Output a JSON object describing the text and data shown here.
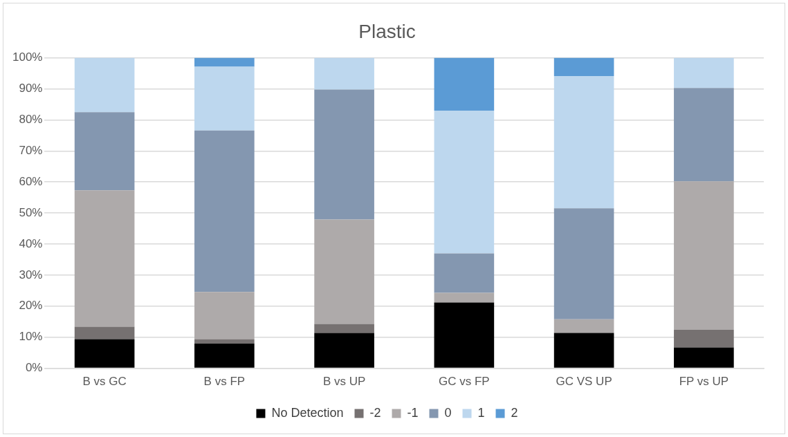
{
  "chart_data": {
    "type": "bar",
    "title": "Plastic",
    "stacked": true,
    "categories": [
      "B vs GC",
      "B vs FP",
      "B vs UP",
      "GC vs FP",
      "GC VS UP",
      "FP vs UP"
    ],
    "series": [
      {
        "name": "No Detection",
        "color": "#000000",
        "values": [
          9.4,
          8.0,
          11.4,
          21.2,
          11.4,
          6.7
        ]
      },
      {
        "name": "-2",
        "color": "#767171",
        "values": [
          4.0,
          1.4,
          2.9,
          0,
          0,
          5.7
        ]
      },
      {
        "name": "-1",
        "color": "#aeaaaa",
        "values": [
          43.9,
          15.2,
          33.6,
          3.1,
          4.4,
          47.8
        ]
      },
      {
        "name": "0",
        "color": "#8497b0",
        "values": [
          25.2,
          52.0,
          41.9,
          12.7,
          35.7,
          30.1
        ]
      },
      {
        "name": "1",
        "color": "#bdd7ee",
        "values": [
          17.5,
          20.5,
          10.2,
          46.0,
          42.6,
          9.7
        ]
      },
      {
        "name": "2",
        "color": "#5b9bd5",
        "values": [
          0,
          2.9,
          0,
          17.0,
          5.9,
          0
        ]
      }
    ],
    "ylim": [
      0,
      100
    ],
    "yticks": [
      {
        "value": 0,
        "label": "0%"
      },
      {
        "value": 10,
        "label": "10%"
      },
      {
        "value": 20,
        "label": "20%"
      },
      {
        "value": 30,
        "label": "30%"
      },
      {
        "value": 40,
        "label": "40%"
      },
      {
        "value": 50,
        "label": "50%"
      },
      {
        "value": 60,
        "label": "60%"
      },
      {
        "value": 70,
        "label": "70%"
      },
      {
        "value": 80,
        "label": "80%"
      },
      {
        "value": 90,
        "label": "90%"
      },
      {
        "value": 100,
        "label": "100%"
      }
    ],
    "grid": "y",
    "legend": "bottom"
  }
}
